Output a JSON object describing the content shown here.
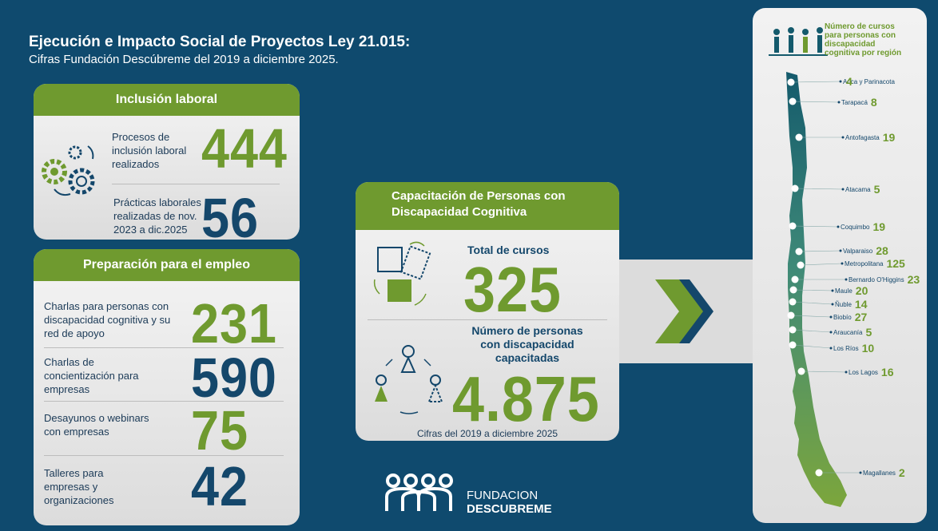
{
  "header": {
    "title": "Ejecución e Impacto Social de Proyectos Ley 21.015:",
    "subtitle": "Cifras Fundación Descúbreme del 2019 a diciembre 2025."
  },
  "inclusion": {
    "title": "Inclusión laboral",
    "items": [
      {
        "label": "Procesos de inclusión laboral realizados",
        "value": 444
      },
      {
        "label": "Prácticas laborales realizadas de nov. 2023 a dic.2025",
        "value": 56
      }
    ]
  },
  "preparation": {
    "title": "Preparación para el empleo",
    "items": [
      {
        "label": "Charlas para personas con discapacidad cognitiva y su red de apoyo",
        "value": 231
      },
      {
        "label": "Charlas de concientización para empresas",
        "value": 590
      },
      {
        "label": "Desayunos o webinars con empresas",
        "value": 75
      },
      {
        "label": "Talleres para empresas y organizaciones",
        "value": 42
      }
    ]
  },
  "training": {
    "title": "Capacitación de Personas con Discapacidad Cognitiva",
    "courses_label": "Total de cursos",
    "courses": 325,
    "people_label": "Número de personas con discapacidad capacitadas",
    "people": "4.875",
    "note": "Cifras del 2019 a diciembre 2025"
  },
  "logo": {
    "line1": "FUNDACION",
    "line2": "DESCUBREME"
  },
  "map": {
    "title": "Número de cursos para personas con discapacidad cognitiva por región",
    "regions": [
      {
        "name": "Arica y Parinacota",
        "value": 4
      },
      {
        "name": "Tarapacá",
        "value": 8
      },
      {
        "name": "Antofagasta",
        "value": 19
      },
      {
        "name": "Atacama",
        "value": 5
      },
      {
        "name": "Coquimbo",
        "value": 19
      },
      {
        "name": "Valparaiso",
        "value": 28
      },
      {
        "name": "Metropolitana",
        "value": 125
      },
      {
        "name": "Bernardo O'Higgins",
        "value": 23
      },
      {
        "name": "Maule",
        "value": 20
      },
      {
        "name": "Ñuble",
        "value": 14
      },
      {
        "name": "Biobío",
        "value": 27
      },
      {
        "name": "Araucanía",
        "value": 5
      },
      {
        "name": "Los Ríos",
        "value": 10
      },
      {
        "name": "Los Lagos",
        "value": 16
      },
      {
        "name": "Magallanes",
        "value": 2
      }
    ]
  }
}
